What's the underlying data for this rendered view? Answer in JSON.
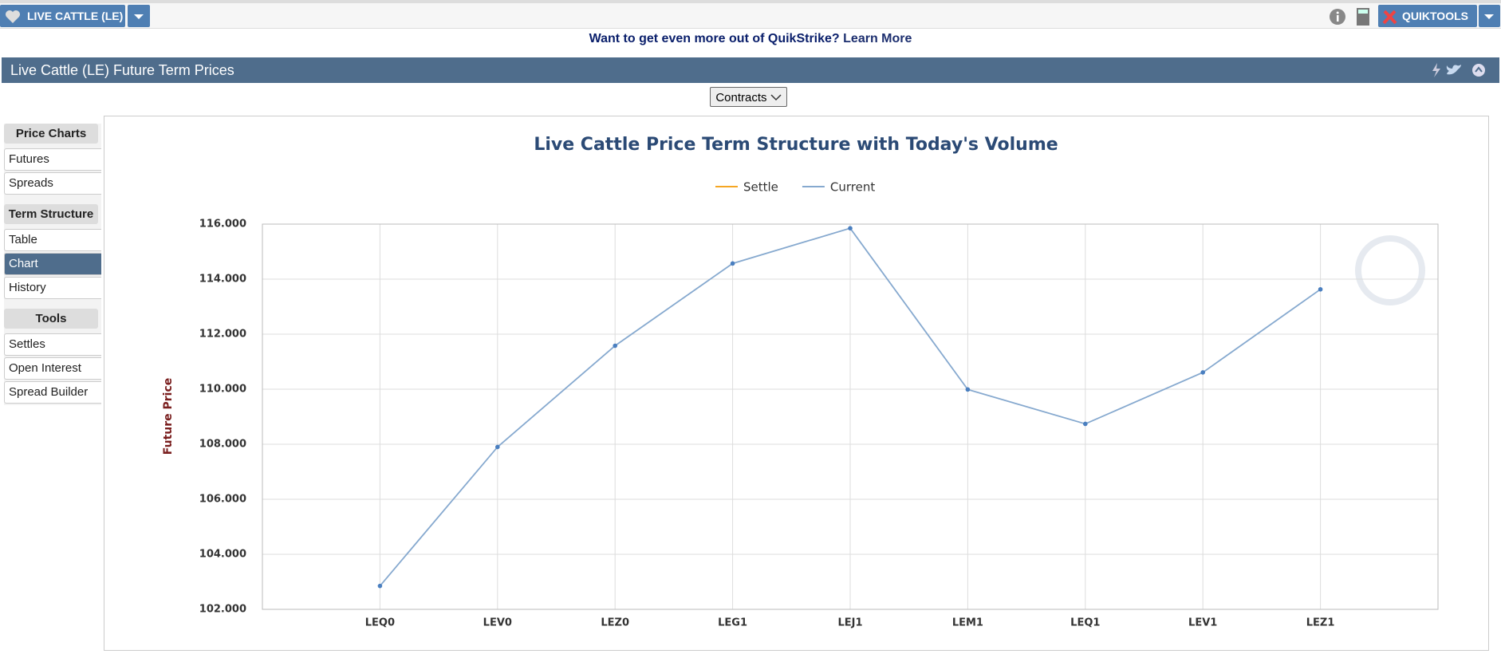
{
  "toolbar": {
    "product": "LIVE CATTLE (LE)",
    "tools": "QUIKTOOLS"
  },
  "banner": {
    "text": "Want to get even more out of QuikStrike?",
    "link": "Learn More"
  },
  "panel": {
    "title": "Live Cattle (LE) Future Term Prices",
    "button": "Contracts"
  },
  "sidebar": [
    {
      "title": "Price Charts",
      "items": [
        "Futures",
        "Spreads"
      ]
    },
    {
      "title": "Term Structure",
      "items": [
        "Table",
        "Chart",
        "History"
      ]
    },
    {
      "title": "Tools",
      "items": [
        "Settles",
        "Open Interest",
        "Spread Builder"
      ]
    }
  ],
  "chart_data": {
    "type": "line",
    "title": "Live Cattle Price Term Structure with Today's Volume",
    "y_label": "Future Price",
    "categories": [
      "LEQ0",
      "LEV0",
      "LEZ0",
      "LEG1",
      "LEJ1",
      "LEM1",
      "LEQ1",
      "LEV1",
      "LEZ1"
    ],
    "series": [
      {
        "name": "Settle",
        "color": "#f5a623",
        "values": [
          null,
          null,
          null,
          null,
          null,
          null,
          null,
          null,
          null
        ]
      },
      {
        "name": "Current",
        "color": "#86a9cf",
        "values": [
          102.85,
          107.9,
          111.58,
          114.57,
          115.85,
          109.99,
          108.74,
          110.61,
          113.63
        ]
      }
    ],
    "ylim": [
      102,
      116
    ],
    "yticks": [
      {
        "value": 102,
        "label": "102.000"
      },
      {
        "value": 104,
        "label": "104.000"
      },
      {
        "value": 106,
        "label": "106.000"
      },
      {
        "value": 108,
        "label": "108.000"
      },
      {
        "value": 110,
        "label": "110.000"
      },
      {
        "value": 112,
        "label": "112.000"
      },
      {
        "value": 114,
        "label": "114.000"
      },
      {
        "value": 116,
        "label": "116.000"
      }
    ],
    "grid": true
  }
}
